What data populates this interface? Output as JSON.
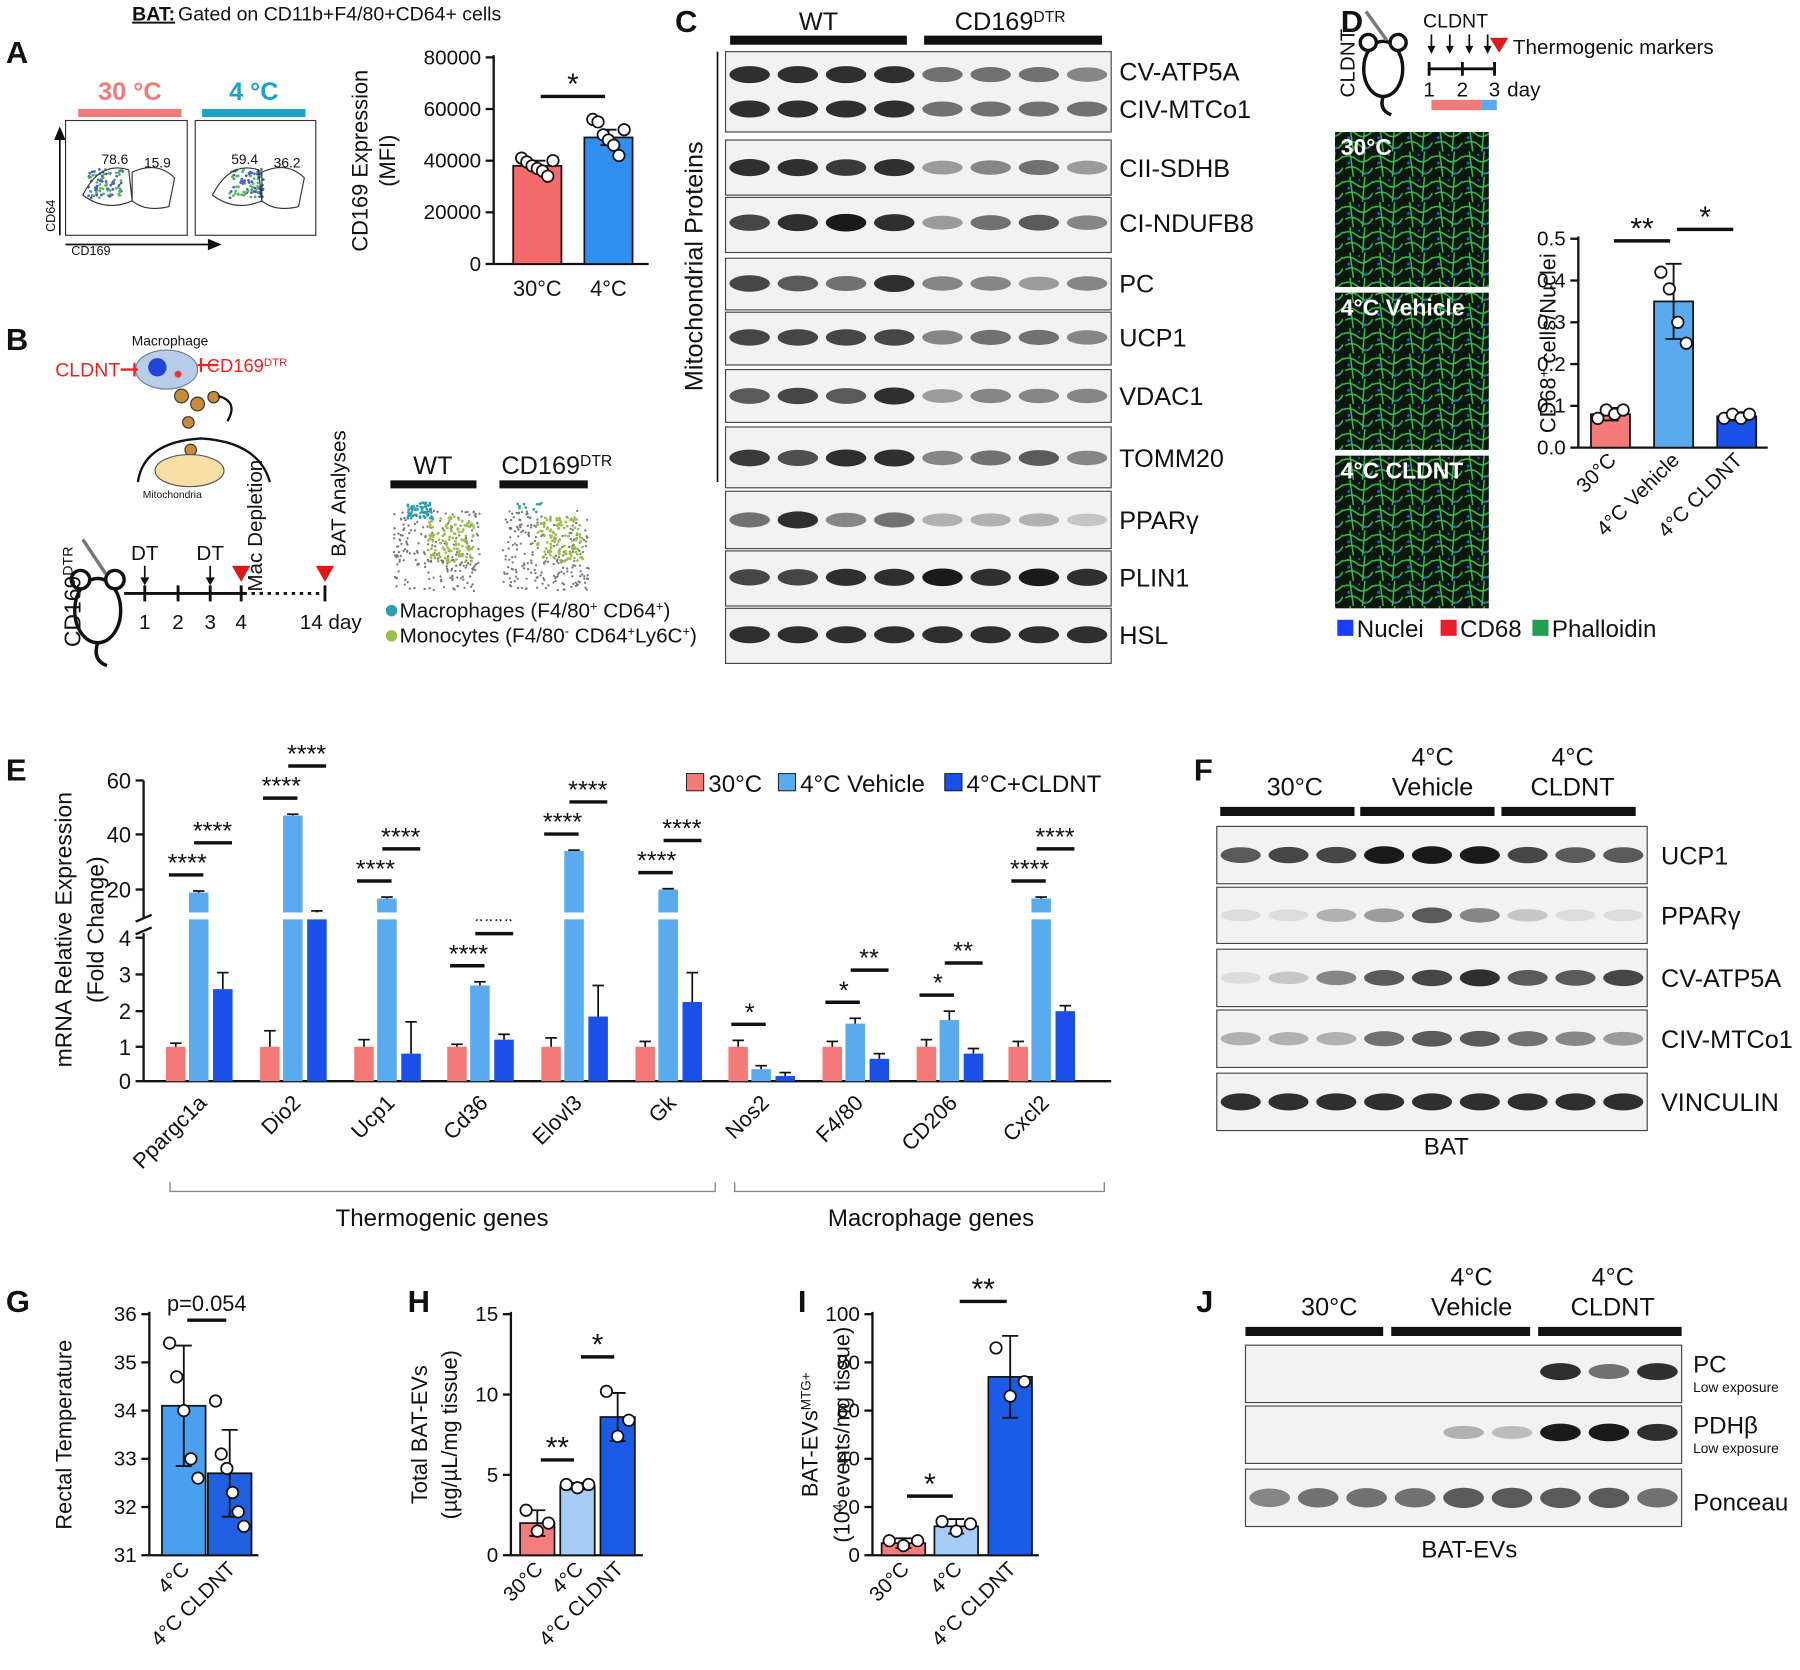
{
  "figure": {
    "letters": [
      "A",
      "B",
      "C",
      "D",
      "E",
      "F",
      "G",
      "H",
      "I",
      "J"
    ],
    "a": {
      "header_bold": "BAT:",
      "header": " Gated on CD11b+F4/80+CD64+ cells",
      "conditions": [
        "30 °C",
        "4 °C"
      ],
      "gates": [
        "78.6",
        "15.9",
        "59.4",
        "36.2"
      ],
      "y_axis": "CD64",
      "x_axis": "CD169"
    },
    "b": {
      "cell": "Macrophage",
      "inhibitor": "CLDNT",
      "depletion": [
        "CD169",
        "DTR"
      ],
      "organelle": "Mitochondria",
      "mouse": [
        "CD169",
        "DTR"
      ],
      "injections": [
        "DT",
        "DT"
      ],
      "days": [
        "1",
        "2",
        "3",
        "4",
        "14 day"
      ],
      "events": [
        "Mac Depletion",
        "BAT Analyses"
      ],
      "groups": [
        [
          "WT"
        ],
        [
          "CD169",
          "DTR"
        ]
      ],
      "legend": [
        [
          "Macrophages (F4/80",
          "+",
          " CD64",
          "+",
          ")"
        ],
        [
          "Monocytes (F4/80",
          "-",
          " CD64",
          "+",
          "Ly6C",
          "+",
          ")"
        ]
      ]
    },
    "c": {
      "groups": [
        [
          "WT"
        ],
        [
          "CD169",
          "DTR"
        ]
      ],
      "bracket": "Mitochondrial Proteins",
      "proteins": [
        "CV-ATP5A",
        "CIV-MTCo1",
        "CII-SDHB",
        "CI-NDUFB8",
        "PC",
        "UCP1",
        "VDAC1",
        "TOMM20",
        "PPARγ",
        "PLIN1",
        "HSL"
      ]
    },
    "d": {
      "mouse": "CLDNT",
      "treatment": "CLDNT",
      "readout": "Thermogenic markers",
      "days": [
        "1",
        "2",
        "3"
      ],
      "day_unit": "day",
      "images": [
        "30°C",
        "4°C Vehicle",
        "4°C CLDNT"
      ],
      "stains": [
        "Nuclei",
        "CD68",
        "Phalloidin"
      ]
    },
    "e": {
      "group_labels": [
        "Thermogenic genes",
        "Macrophage genes"
      ]
    },
    "f": {
      "groups": [
        [
          "30°C"
        ],
        [
          "4°C",
          "Vehicle"
        ],
        [
          "4°C",
          "CLDNT"
        ]
      ],
      "proteins": [
        "UCP1",
        "PPARγ",
        "CV-ATP5A",
        "CIV-MTCo1",
        "VINCULIN"
      ],
      "sample": "BAT"
    },
    "j": {
      "groups": [
        [
          "30°C"
        ],
        [
          "4°C",
          "Vehicle"
        ],
        [
          "4°C",
          "CLDNT"
        ]
      ],
      "proteins": [
        "PC",
        "PDHβ",
        "Ponceau"
      ],
      "notes": [
        "Low exposure",
        "Low exposure"
      ],
      "sample": "BAT-EVs"
    }
  },
  "chart_data": [
    {
      "type": "bar",
      "categories": [
        "30°C",
        "4°C"
      ],
      "values": [
        38000,
        49000
      ],
      "errors": [
        2000,
        3000
      ],
      "points": [
        [
          41000,
          39500,
          38000,
          37000,
          36000,
          34000,
          40000
        ],
        [
          56000,
          55000,
          50000,
          48000,
          46000,
          42000,
          52000
        ]
      ],
      "colors": [
        "#f46b6b",
        "#2f8ff0"
      ],
      "ylim": [
        0,
        80000
      ],
      "yticks": [
        0,
        20000,
        40000,
        60000,
        80000
      ],
      "ylabel": [
        "CD169 Expression",
        "(MFI)"
      ],
      "significance": [
        "*"
      ]
    },
    {
      "type": "bar",
      "categories": [
        "30°C",
        "4°C Vehicle",
        "4°C CLDNT"
      ],
      "values": [
        0.08,
        0.35,
        0.075
      ],
      "errors": [
        0.015,
        0.09,
        0.01
      ],
      "points": [
        [
          0.07,
          0.09,
          0.08,
          0.09
        ],
        [
          0.42,
          0.38,
          0.3,
          0.25
        ],
        [
          0.07,
          0.08,
          0.07,
          0.08
        ]
      ],
      "colors": [
        "#f47a7a",
        "#5aaaf0",
        "#1a4fe8"
      ],
      "ylim": [
        0,
        0.5
      ],
      "yticks": [
        {
          "value": 0,
          "label": "0.0"
        },
        0.1,
        0.2,
        0.3,
        0.4,
        0.5
      ],
      "ylabel": [
        [
          "CD68",
          "+",
          " cells/Nuclei"
        ]
      ],
      "significance": [
        "**",
        "*"
      ]
    },
    {
      "type": "grouped-bar",
      "categories": [
        "Ppargc1a",
        "Dio2",
        "Ucp1",
        "Cd36",
        "Elovl3",
        "Gk",
        "Nos2",
        "F4/80",
        "CD206",
        "Cxcl2"
      ],
      "series": [
        {
          "name": "30°C",
          "color": "#f47a7a",
          "values": [
            1,
            1,
            1,
            1,
            1,
            1,
            1,
            1,
            1,
            1
          ],
          "errors": [
            0.1,
            0.45,
            0.2,
            0.07,
            0.25,
            0.15,
            0.18,
            0.15,
            0.2,
            0.15
          ]
        },
        {
          "name": "4°C Vehicle",
          "color": "#5aaaf0",
          "values": [
            19,
            47,
            17,
            2.7,
            34,
            20,
            0.35,
            1.65,
            1.75,
            17
          ],
          "errors": [
            0.5,
            0.5,
            0.5,
            0.1,
            0.3,
            0.3,
            0.1,
            0.15,
            0.25,
            0.5
          ]
        },
        {
          "name": "4°C+CLDNT",
          "color": "#1a4fe8",
          "values": [
            2.6,
            12.4,
            0.8,
            1.2,
            1.85,
            2.25,
            0.15,
            0.65,
            0.8,
            2.0
          ],
          "errors": [
            0.45,
            0.5,
            0.9,
            0.15,
            0.85,
            0.8,
            0.1,
            0.15,
            0.15,
            0.15
          ]
        }
      ],
      "ylim": [
        0,
        60
      ],
      "yticks": [
        0,
        1,
        2,
        3,
        4,
        20,
        40,
        60
      ],
      "axis_break": 4,
      "ylabel": [
        "mRNA Relative Expression",
        "(Fold Change)"
      ],
      "significance": [
        [
          "****",
          "****"
        ],
        [
          "****",
          "****"
        ],
        [
          "****",
          "****"
        ],
        [
          "****",
          "****"
        ],
        [
          "****",
          "****"
        ],
        [
          "****",
          "****"
        ],
        [
          "*",
          null
        ],
        [
          "*",
          "**"
        ],
        [
          "*",
          "**"
        ],
        [
          "****",
          "****"
        ]
      ]
    },
    {
      "type": "bar",
      "categories": [
        "4°C",
        "4°C CLDNT"
      ],
      "values": [
        34.1,
        32.7
      ],
      "errors": [
        1.25,
        0.9
      ],
      "points": [
        [
          35.4,
          34.7,
          34.0,
          33.0,
          32.6
        ],
        [
          34.2,
          33.1,
          32.8,
          32.3,
          31.9,
          31.6
        ]
      ],
      "colors": [
        "#4aa0ef",
        "#1f5fe0"
      ],
      "ylim": [
        31,
        36
      ],
      "yticks": [
        31,
        32,
        33,
        34,
        35,
        36
      ],
      "ylabel": [
        "Rectal Temperature"
      ],
      "significance": [
        "p=0.054"
      ]
    },
    {
      "type": "bar",
      "categories": [
        "30°C",
        "4°C",
        "4°C CLDNT"
      ],
      "values": [
        2.0,
        4.3,
        8.6
      ],
      "errors": [
        0.8,
        0.2,
        1.5
      ],
      "points": [
        [
          2.8,
          1.5,
          2.0
        ],
        [
          4.4,
          4.2,
          4.4
        ],
        [
          10.2,
          7.4,
          8.4
        ]
      ],
      "colors": [
        "#f47c7c",
        "#a6cdf5",
        "#1a5ce8"
      ],
      "ylim": [
        0,
        15
      ],
      "yticks": [
        0,
        5,
        10,
        15
      ],
      "ylabel": [
        "Total BAT-EVs",
        "(µg/µL/mg tissue)"
      ],
      "significance": [
        "**",
        "*"
      ]
    },
    {
      "type": "bar",
      "categories": [
        "30°C",
        "4°C",
        "4°C CLDNT"
      ],
      "values": [
        5,
        12,
        74
      ],
      "errors": [
        2,
        3,
        17
      ],
      "points": [
        [
          6,
          4,
          6
        ],
        [
          14,
          10,
          13
        ],
        [
          86,
          66,
          72
        ]
      ],
      "colors": [
        "#f47c7c",
        "#a6cdf5",
        "#1a5ce8"
      ],
      "ylim": [
        0,
        100
      ],
      "yticks": [
        0,
        20,
        40,
        60,
        80,
        100
      ],
      "ylabel": [
        [
          "BAT-EVs",
          "MTG+"
        ],
        [
          "(10",
          "4",
          " events/mg tissue)"
        ]
      ],
      "significance": [
        "*",
        "**"
      ]
    }
  ]
}
